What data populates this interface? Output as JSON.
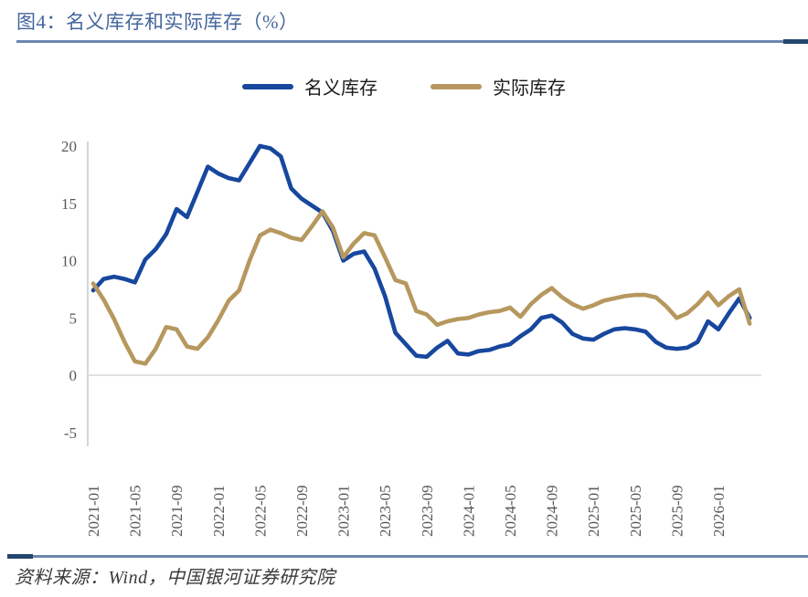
{
  "figure": {
    "title": "图4：名义库存和实际库存（%）",
    "source": "资料来源：Wind，中国银河证券研究院"
  },
  "theme": {
    "title_color": "#44659B",
    "rule_color": "#6C87AE",
    "rule_accent_color": "#24456E",
    "axis_line_color": "#C8C8C8",
    "gridline_color": "#D9D9D9",
    "tick_label_color": "#595959"
  },
  "chart_data": {
    "type": "line",
    "title": "名义库存和实际库存（%）",
    "unit": "%",
    "legend_position": "top-center",
    "grid": "zero-line-only",
    "ylim": [
      -5,
      20
    ],
    "yticks": [
      20,
      15,
      10,
      5,
      0,
      -5
    ],
    "xtick_labels": [
      "2021-01",
      "2021-05",
      "2021-09",
      "2022-01",
      "2022-05",
      "2022-09",
      "2023-01",
      "2023-05",
      "2023-09",
      "2024-01",
      "2024-05",
      "2024-09",
      "2025-01",
      "2025-05",
      "2025-09",
      "2026-01"
    ],
    "x": [
      "2021-01",
      "2021-02",
      "2021-03",
      "2021-04",
      "2021-05",
      "2021-06",
      "2021-07",
      "2021-08",
      "2021-09",
      "2021-10",
      "2021-11",
      "2021-12",
      "2022-01",
      "2022-02",
      "2022-03",
      "2022-04",
      "2022-05",
      "2022-06",
      "2022-07",
      "2022-08",
      "2022-09",
      "2022-10",
      "2022-11",
      "2022-12",
      "2023-01",
      "2023-02",
      "2023-03",
      "2023-04",
      "2023-05",
      "2023-06",
      "2023-07",
      "2023-08",
      "2023-09",
      "2023-10",
      "2023-11",
      "2023-12",
      "2024-01",
      "2024-02",
      "2024-03",
      "2024-04",
      "2024-05",
      "2024-06",
      "2024-07",
      "2024-08",
      "2024-09",
      "2024-10",
      "2024-11",
      "2024-12",
      "2025-01",
      "2025-02",
      "2025-03",
      "2025-04",
      "2025-05",
      "2025-06",
      "2025-07",
      "2025-08",
      "2025-09",
      "2025-10",
      "2025-11",
      "2025-12",
      "2026-01",
      "2026-02",
      "2026-03",
      "2026-04"
    ],
    "series": [
      {
        "name": "名义库存",
        "color": "#17479E",
        "values": [
          7.4,
          8.4,
          8.6,
          8.4,
          8.1,
          10.1,
          11.0,
          12.3,
          14.5,
          13.8,
          16.0,
          18.2,
          17.6,
          17.2,
          17.0,
          18.5,
          20.0,
          19.8,
          19.1,
          16.3,
          15.4,
          14.8,
          14.2,
          12.6,
          10.0,
          10.6,
          10.8,
          9.3,
          6.9,
          3.7,
          2.7,
          1.7,
          1.6,
          2.4,
          3.0,
          1.9,
          1.8,
          2.1,
          2.2,
          2.5,
          2.7,
          3.4,
          4.0,
          5.0,
          5.2,
          4.6,
          3.6,
          3.2,
          3.1,
          3.6,
          4.0,
          4.1,
          4.0,
          3.8,
          2.9,
          2.4,
          2.3,
          2.4,
          2.9,
          4.7,
          4.0,
          5.4,
          6.7,
          5.0
        ]
      },
      {
        "name": "实际库存",
        "color": "#B6985E",
        "values": [
          8.0,
          6.6,
          4.9,
          2.9,
          1.2,
          1.0,
          2.3,
          4.2,
          4.0,
          2.5,
          2.3,
          3.3,
          4.8,
          6.5,
          7.4,
          10.0,
          12.2,
          12.7,
          12.4,
          12.0,
          11.8,
          13.0,
          14.3,
          12.9,
          10.3,
          11.5,
          12.4,
          12.2,
          10.3,
          8.3,
          8.0,
          5.6,
          5.3,
          4.4,
          4.7,
          4.9,
          5.0,
          5.3,
          5.5,
          5.6,
          5.9,
          5.1,
          6.2,
          7.0,
          7.6,
          6.8,
          6.2,
          5.8,
          6.1,
          6.5,
          6.7,
          6.9,
          7.0,
          7.0,
          6.8,
          6.0,
          5.0,
          5.4,
          6.2,
          7.2,
          6.1,
          6.9,
          7.5,
          4.5
        ]
      }
    ]
  }
}
